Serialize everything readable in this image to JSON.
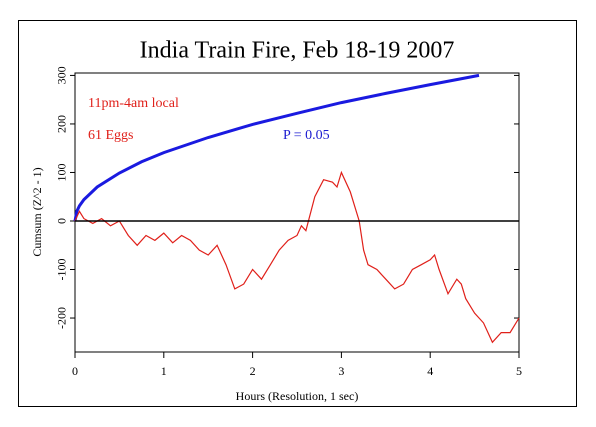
{
  "chart_data": {
    "type": "line",
    "title": "India Train Fire, Feb 18-19 2007",
    "xlabel": "Hours (Resolution, 1 sec)",
    "ylabel": "Cumsum (Z^2 - 1)",
    "annotations": [
      {
        "text": "11pm-4am local",
        "color": "#e0201a"
      },
      {
        "text": "61 Eggs",
        "color": "#e0201a"
      },
      {
        "text": "P = 0.05",
        "color": "#1a1ad0"
      }
    ],
    "xlim": [
      0,
      5
    ],
    "xticks": [
      0,
      1,
      2,
      3,
      4,
      5
    ],
    "ylim": [
      -270,
      305
    ],
    "yticks": [
      -200,
      -100,
      0,
      100,
      200,
      300
    ],
    "hline": 0,
    "series": [
      {
        "color": "#1a1ae0",
        "x": [
          0,
          0.02,
          0.05,
          0.1,
          0.25,
          0.5,
          0.75,
          1,
          1.5,
          2,
          2.5,
          3,
          3.5,
          4,
          4.55
        ],
        "values": [
          0,
          20,
          31,
          44,
          70,
          99,
          122,
          141,
          172,
          199,
          222,
          244,
          263,
          281,
          300
        ]
      },
      {
        "color": "#e0201a",
        "x": [
          0,
          0.05,
          0.1,
          0.2,
          0.3,
          0.4,
          0.5,
          0.6,
          0.7,
          0.8,
          0.9,
          1.0,
          1.1,
          1.2,
          1.3,
          1.4,
          1.5,
          1.6,
          1.7,
          1.8,
          1.9,
          2.0,
          2.1,
          2.2,
          2.3,
          2.4,
          2.5,
          2.55,
          2.6,
          2.7,
          2.8,
          2.9,
          2.95,
          3.0,
          3.1,
          3.2,
          3.25,
          3.3,
          3.4,
          3.5,
          3.6,
          3.7,
          3.8,
          3.9,
          4.0,
          4.05,
          4.1,
          4.2,
          4.3,
          4.35,
          4.4,
          4.5,
          4.6,
          4.7,
          4.8,
          4.9,
          5.0
        ],
        "values": [
          0,
          20,
          5,
          -5,
          5,
          -10,
          0,
          -30,
          -50,
          -30,
          -40,
          -25,
          -45,
          -30,
          -40,
          -60,
          -70,
          -50,
          -90,
          -140,
          -130,
          -100,
          -120,
          -90,
          -60,
          -40,
          -30,
          -10,
          -20,
          50,
          85,
          80,
          70,
          100,
          60,
          0,
          -60,
          -90,
          -100,
          -120,
          -140,
          -130,
          -100,
          -90,
          -80,
          -70,
          -100,
          -150,
          -120,
          -130,
          -160,
          -190,
          -210,
          -250,
          -230,
          -230,
          -200
        ]
      }
    ]
  }
}
